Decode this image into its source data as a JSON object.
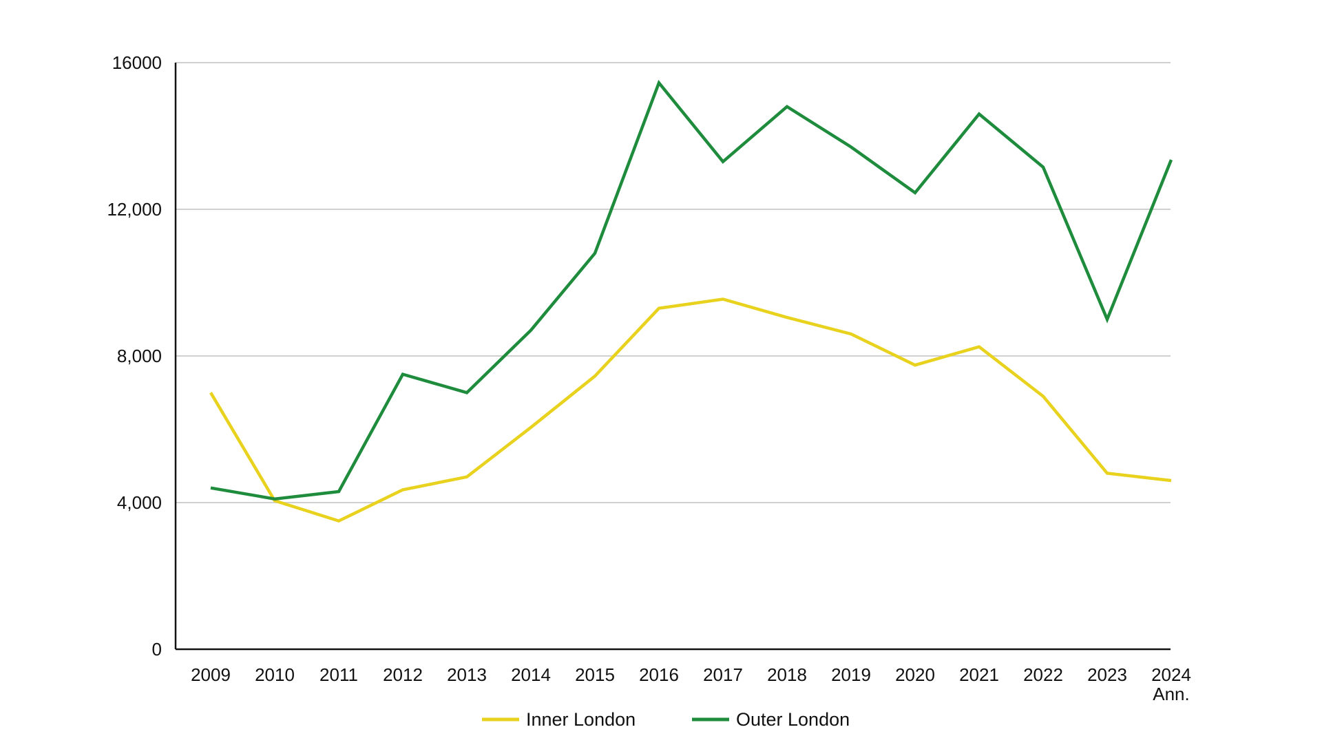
{
  "chart_data": {
    "type": "line",
    "title": "",
    "xlabel": "",
    "ylabel": "",
    "categories": [
      "2009",
      "2010",
      "2011",
      "2012",
      "2013",
      "2014",
      "2015",
      "2016",
      "2017",
      "2018",
      "2019",
      "2020",
      "2021",
      "2022",
      "2023",
      "2024"
    ],
    "category_sublabels": [
      "",
      "",
      "",
      "",
      "",
      "",
      "",
      "",
      "",
      "",
      "",
      "",
      "",
      "",
      "",
      "Ann."
    ],
    "y_ticks": [
      {
        "value": 0,
        "label": "0"
      },
      {
        "value": 4000,
        "label": "4,000"
      },
      {
        "value": 8000,
        "label": "8,000"
      },
      {
        "value": 12000,
        "label": "12,000"
      },
      {
        "value": 16000,
        "label": "16000"
      }
    ],
    "ylim": [
      0,
      16000
    ],
    "grid": true,
    "legend_position": "bottom",
    "series": [
      {
        "name": "Inner London",
        "color": "#E8D21D",
        "values": [
          7000,
          4050,
          3500,
          4350,
          4700,
          6050,
          7450,
          9300,
          9550,
          9050,
          8600,
          7750,
          8250,
          6900,
          4800,
          4600
        ]
      },
      {
        "name": "Outer London",
        "color": "#1E8C3C",
        "values": [
          4400,
          4100,
          4300,
          7500,
          7000,
          8700,
          10800,
          15450,
          13300,
          14800,
          13700,
          12450,
          14600,
          13150,
          9000,
          13350
        ]
      }
    ]
  }
}
